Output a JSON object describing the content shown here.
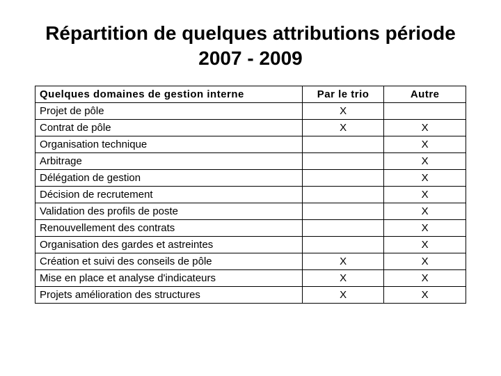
{
  "title": "Répartition de quelques attributions période 2007 - 2009",
  "table": {
    "columns": [
      "Quelques domaines de gestion interne",
      "Par le trio",
      "Autre"
    ],
    "rows": [
      {
        "label": "Projet de pôle",
        "trio": "X",
        "autre": ""
      },
      {
        "label": "Contrat de pôle",
        "trio": "X",
        "autre": "X"
      },
      {
        "label": "Organisation technique",
        "trio": "",
        "autre": "X"
      },
      {
        "label": "Arbitrage",
        "trio": "",
        "autre": "X"
      },
      {
        "label": "Délégation de gestion",
        "trio": "",
        "autre": "X"
      },
      {
        "label": "Décision de recrutement",
        "trio": "",
        "autre": "X"
      },
      {
        "label": "Validation des profils de poste",
        "trio": "",
        "autre": "X"
      },
      {
        "label": "Renouvellement des contrats",
        "trio": "",
        "autre": "X"
      },
      {
        "label": "Organisation des gardes et astreintes",
        "trio": "",
        "autre": "X"
      },
      {
        "label": "Création et suivi des conseils de pôle",
        "trio": "X",
        "autre": "X"
      },
      {
        "label": "Mise en place et analyse d'indicateurs",
        "trio": "X",
        "autre": "X"
      },
      {
        "label": "Projets amélioration des structures",
        "trio": "X",
        "autre": "X"
      }
    ],
    "border_color": "#000000",
    "text_color": "#000000",
    "background_color": "#ffffff",
    "header_fontweight": "bold",
    "cell_fontsize": 15,
    "title_fontsize": 28,
    "column_widths_pct": [
      62,
      19,
      19
    ]
  }
}
